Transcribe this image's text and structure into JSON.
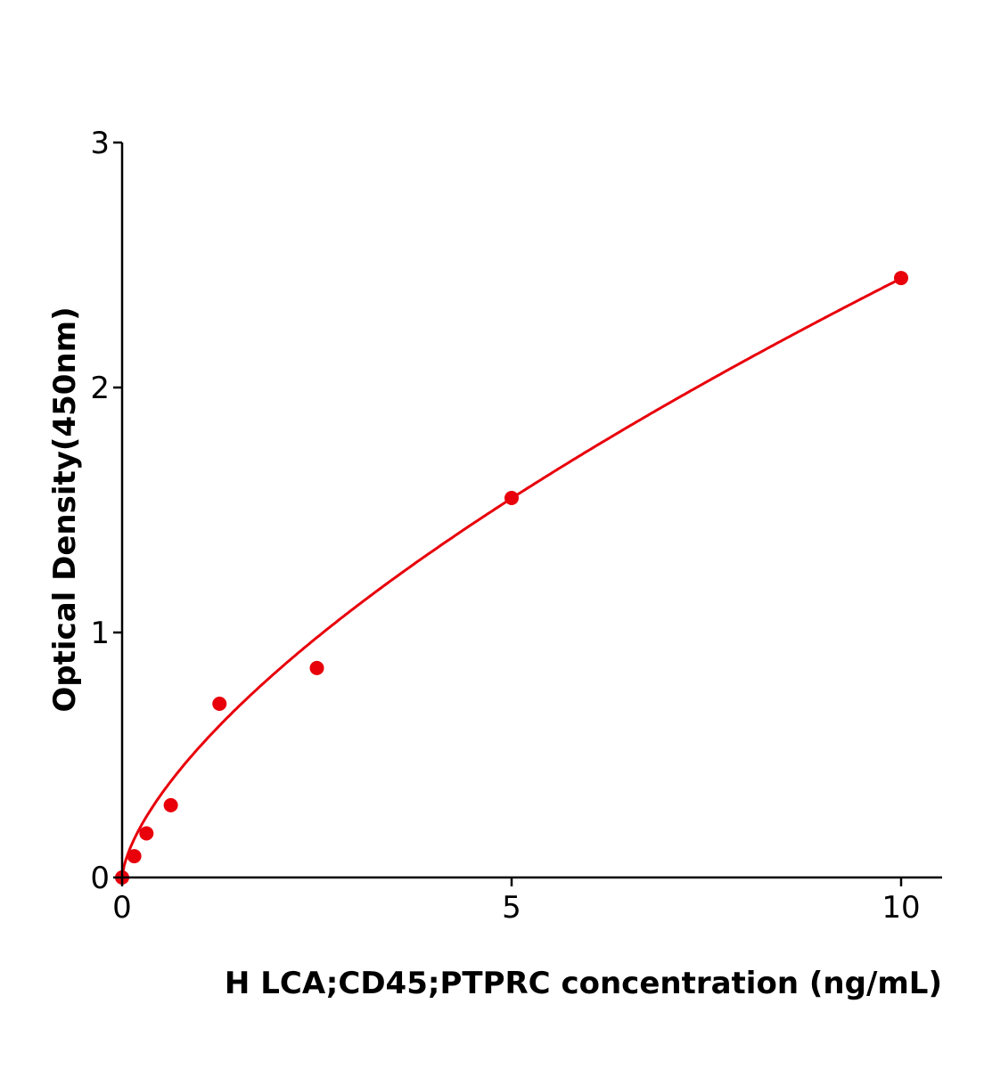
{
  "chart_data": {
    "type": "scatter",
    "title": "",
    "xlabel": "H  LCA;CD45;PTPRC concentration (ng/mL)",
    "ylabel": "Optical Density(450nm)",
    "xlim": [
      0,
      10.5
    ],
    "ylim": [
      0,
      3
    ],
    "xticks": [
      0,
      5,
      10
    ],
    "yticks": [
      0,
      1,
      2,
      3
    ],
    "grid": false,
    "legend": "none",
    "color": "#e8000b",
    "series": [
      {
        "x": [
          0,
          0.156,
          0.3125,
          0.625,
          1.25,
          2.5,
          5,
          10
        ],
        "y": [
          0.0,
          0.087,
          0.18,
          0.295,
          0.709,
          0.855,
          1.549,
          2.447
        ]
      }
    ],
    "fit_curve": {
      "type": "power",
      "a": 0.535,
      "b": 0.66
    }
  }
}
